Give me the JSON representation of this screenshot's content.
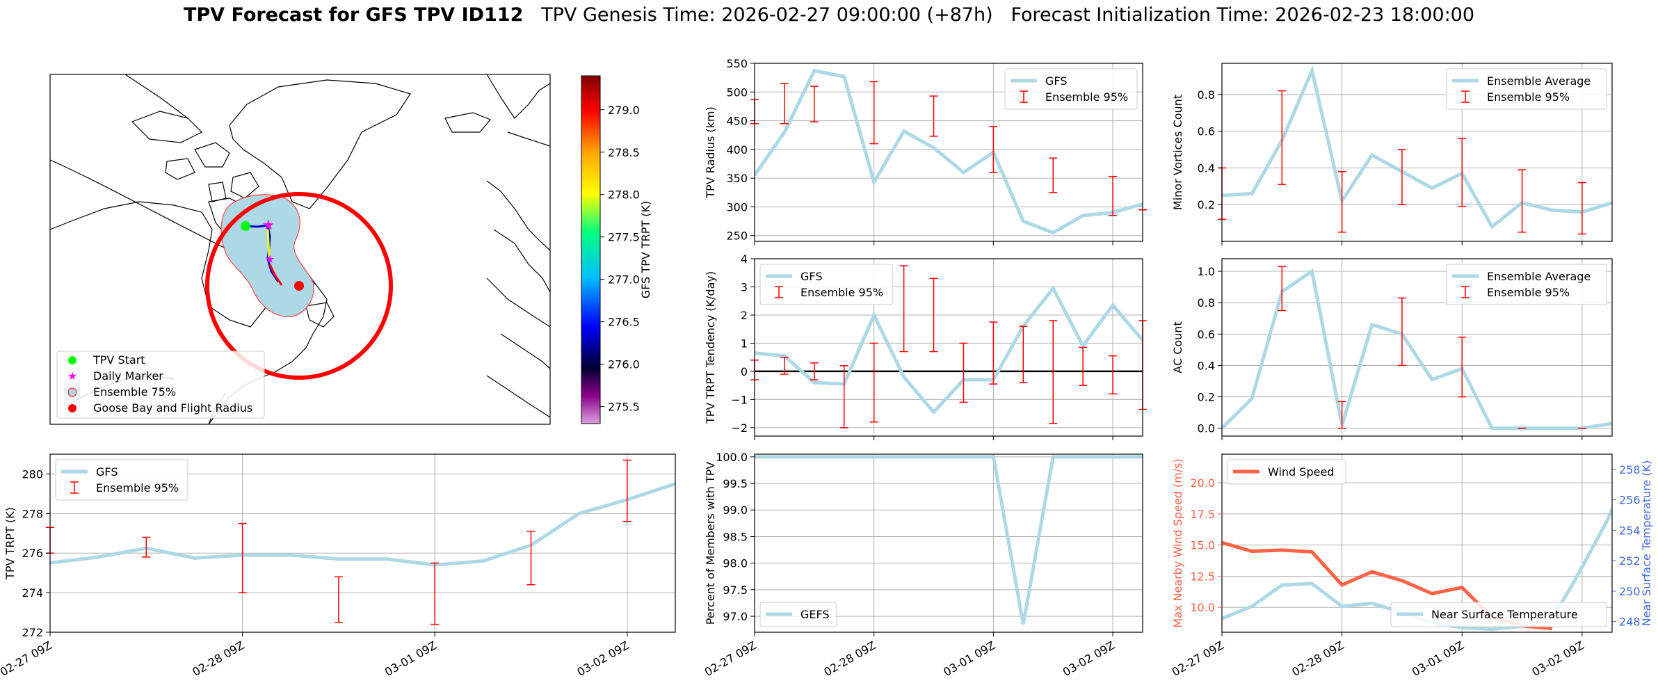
{
  "title": {
    "bold": "TPV Forecast for GFS TPV ID112",
    "genesis": "TPV Genesis Time: 2026-02-27 09:00:00 (+87h)",
    "init": "Forecast Initialization Time: 2026-02-23 18:00:00"
  },
  "colors": {
    "series": "#add8e6",
    "errorbar": "#ff0000",
    "wind": "#ff6347",
    "temp_axis": "#4169e1",
    "grid": "#b0b0b0"
  },
  "map_panel": {
    "colorbar_label": "GFS TPV TRPT (K)",
    "colorbar_ticks": [
      "275.5",
      "276.0",
      "276.5",
      "277.0",
      "277.5",
      "278.0",
      "278.5",
      "279.0"
    ],
    "colorbar_range": [
      275.3,
      279.4
    ],
    "legend": [
      {
        "label": "TPV Start",
        "marker": "circle",
        "color": "#00ff00"
      },
      {
        "label": "Daily Marker",
        "marker": "star",
        "color": "#ff00ff"
      },
      {
        "label": "Ensemble 75%",
        "marker": "circle-outline",
        "color": "#add8e6"
      },
      {
        "label": "Goose Bay and Flight Radius",
        "marker": "circle",
        "color": "#ff0000"
      }
    ]
  },
  "x_ticks": [
    "02-27 09Z",
    "02-28 09Z",
    "03-01 09Z",
    "03-02 09Z"
  ],
  "chart_data": [
    {
      "id": "radius",
      "type": "line",
      "ylabel": "TPV Radius (km)",
      "ylim": [
        240,
        550
      ],
      "yticks": [
        "250",
        "300",
        "350",
        "400",
        "450",
        "500",
        "550"
      ],
      "ytick_values": [
        250,
        300,
        350,
        400,
        450,
        500,
        550
      ],
      "legend": [
        "GFS",
        "Ensemble 95%"
      ],
      "legend_position": "top-right",
      "series": [
        {
          "name": "GFS",
          "values": [
            355,
            430,
            537,
            527,
            343,
            432,
            403,
            360,
            395,
            275,
            255,
            285,
            290,
            305
          ]
        }
      ],
      "errorbars": [
        [
          0,
          445,
          487
        ],
        [
          1,
          445,
          515
        ],
        [
          2,
          448,
          510
        ],
        [
          4,
          410,
          518
        ],
        [
          6,
          423,
          493
        ],
        [
          8,
          360,
          440
        ],
        [
          10,
          325,
          385
        ],
        [
          12,
          285,
          353
        ],
        [
          13,
          295,
          295
        ]
      ]
    },
    {
      "id": "minor",
      "type": "line",
      "ylabel": "Minor Vortices Count",
      "ylim": [
        0.0,
        0.97
      ],
      "yticks": [
        "0.2",
        "0.4",
        "0.6",
        "0.8"
      ],
      "ytick_values": [
        0.2,
        0.4,
        0.6,
        0.8
      ],
      "legend": [
        "Ensemble Average",
        "Ensemble 95%"
      ],
      "legend_position": "top-right",
      "series": [
        {
          "name": "Ensemble Average",
          "values": [
            0.25,
            0.26,
            0.55,
            0.93,
            0.22,
            0.47,
            0.38,
            0.29,
            0.37,
            0.08,
            0.21,
            0.17,
            0.16,
            0.21
          ]
        }
      ],
      "errorbars": [
        [
          0,
          0.12,
          0.4
        ],
        [
          2,
          0.31,
          0.82
        ],
        [
          4,
          0.05,
          0.38
        ],
        [
          6,
          0.2,
          0.5
        ],
        [
          8,
          0.19,
          0.56
        ],
        [
          10,
          0.05,
          0.39
        ],
        [
          12,
          0.04,
          0.32
        ]
      ]
    },
    {
      "id": "tendency",
      "type": "line",
      "ylabel": "TPV TRPT Tendency (K/day)",
      "ylim": [
        -2.3,
        4.0
      ],
      "yticks": [
        "−2",
        "−1",
        "0",
        "1",
        "2",
        "3",
        "4"
      ],
      "ytick_values": [
        -2,
        -1,
        0,
        1,
        2,
        3,
        4
      ],
      "legend": [
        "GFS",
        "Ensemble 95%"
      ],
      "legend_position": "top-left",
      "series": [
        {
          "name": "GFS",
          "values": [
            0.65,
            0.55,
            -0.4,
            -0.45,
            2.0,
            -0.2,
            -1.45,
            -0.3,
            -0.3,
            1.6,
            2.95,
            0.9,
            2.35,
            1.1
          ]
        }
      ],
      "errorbars": [
        [
          0,
          -0.3,
          0.4
        ],
        [
          1,
          -0.1,
          0.5
        ],
        [
          2,
          -0.3,
          0.3
        ],
        [
          3,
          -2.0,
          0.2
        ],
        [
          4,
          -1.8,
          1.0
        ],
        [
          5,
          0.7,
          3.75
        ],
        [
          6,
          0.7,
          3.3
        ],
        [
          7,
          -1.1,
          1.0
        ],
        [
          8,
          -0.45,
          1.75
        ],
        [
          9,
          -0.4,
          1.6
        ],
        [
          10,
          -1.85,
          1.8
        ],
        [
          11,
          -0.5,
          0.85
        ],
        [
          12,
          -0.8,
          0.55
        ],
        [
          13,
          -1.35,
          1.8
        ]
      ]
    },
    {
      "id": "ac",
      "type": "line",
      "ylabel": "AC Count",
      "ylim": [
        -0.05,
        1.08
      ],
      "yticks": [
        "0.0",
        "0.2",
        "0.4",
        "0.6",
        "0.8",
        "1.0"
      ],
      "ytick_values": [
        0.0,
        0.2,
        0.4,
        0.6,
        0.8,
        1.0
      ],
      "legend": [
        "Ensemble Average",
        "Ensemble 95%"
      ],
      "legend_position": "top-right",
      "series": [
        {
          "name": "Ensemble Average",
          "values": [
            0.0,
            0.19,
            0.87,
            1.0,
            0.02,
            0.66,
            0.6,
            0.31,
            0.38,
            0.0,
            0.0,
            0.0,
            0.0,
            0.03
          ]
        }
      ],
      "errorbars": [
        [
          2,
          0.75,
          1.03
        ],
        [
          4,
          0.0,
          0.17
        ],
        [
          6,
          0.4,
          0.83
        ],
        [
          8,
          0.2,
          0.58
        ],
        [
          10,
          0.0,
          0.0
        ],
        [
          12,
          0.0,
          0.0
        ]
      ]
    },
    {
      "id": "trpt",
      "type": "line",
      "ylabel": "TPV TRPT (K)",
      "ylim": [
        272,
        281
      ],
      "yticks": [
        "272",
        "274",
        "276",
        "278",
        "280"
      ],
      "ytick_values": [
        272,
        274,
        276,
        278,
        280
      ],
      "legend": [
        "GFS",
        "Ensemble 95%"
      ],
      "legend_position": "top-left",
      "series": [
        {
          "name": "GFS",
          "values": [
            275.5,
            275.8,
            276.25,
            275.75,
            275.9,
            275.9,
            275.7,
            275.7,
            275.4,
            275.6,
            276.4,
            278.0,
            278.7,
            279.5
          ]
        }
      ],
      "errorbars": [
        [
          0,
          276.0,
          277.3
        ],
        [
          2,
          275.8,
          276.8
        ],
        [
          4,
          274.0,
          277.5
        ],
        [
          6,
          272.5,
          274.8
        ],
        [
          8,
          272.4,
          275.5
        ],
        [
          10,
          274.4,
          277.1
        ],
        [
          12,
          277.6,
          280.7
        ]
      ]
    },
    {
      "id": "percent",
      "type": "line",
      "ylabel": "Percent of Members with TPV",
      "ylim": [
        96.7,
        100.05
      ],
      "yticks": [
        "97.0",
        "97.5",
        "98.0",
        "98.5",
        "99.0",
        "99.5",
        "100.0"
      ],
      "ytick_values": [
        97.0,
        97.5,
        98.0,
        98.5,
        99.0,
        99.5,
        100.0
      ],
      "legend": [
        "GEFS"
      ],
      "legend_position": "bottom-left",
      "series": [
        {
          "name": "GEFS",
          "values": [
            100.0,
            100.0,
            100.0,
            100.0,
            100.0,
            100.0,
            100.0,
            100.0,
            100.0,
            96.85,
            100.0,
            100.0,
            100.0,
            100.0
          ]
        }
      ]
    },
    {
      "id": "wind",
      "type": "line",
      "ylabel": "Max Nearby Wind Speed (m/s)",
      "ylabel_right": "Near Surface Temperature (K)",
      "ylim": [
        8.0,
        22.3
      ],
      "yticks": [
        "10.0",
        "12.5",
        "15.0",
        "17.5",
        "20.0"
      ],
      "ytick_values": [
        10.0,
        12.5,
        15.0,
        17.5,
        20.0
      ],
      "ylim_right": [
        247.3,
        259.0
      ],
      "yticks_right": [
        "248",
        "250",
        "252",
        "254",
        "256",
        "258"
      ],
      "ytick_values_right": [
        248,
        250,
        252,
        254,
        256,
        258
      ],
      "legend": [
        "Wind Speed"
      ],
      "legend_right": [
        "Near Surface Temperature"
      ],
      "series": [
        {
          "name": "Wind Speed",
          "values": [
            15.2,
            14.5,
            14.6,
            14.45,
            11.8,
            12.85,
            12.15,
            11.1,
            11.6,
            9.2,
            8.5,
            8.3,
            null,
            null
          ]
        },
        {
          "name": "Near Surface Temperature",
          "values": [
            248.2,
            249.0,
            250.4,
            250.5,
            249.0,
            249.2,
            248.6,
            247.9,
            247.6,
            247.5,
            247.7,
            248.2,
            250.5,
            254.5,
            258.8
          ],
          "x": [
            0,
            1,
            2,
            3,
            4,
            5,
            6,
            7,
            8,
            9,
            10,
            11,
            11.7,
            12.8,
            13.8
          ]
        }
      ]
    }
  ]
}
